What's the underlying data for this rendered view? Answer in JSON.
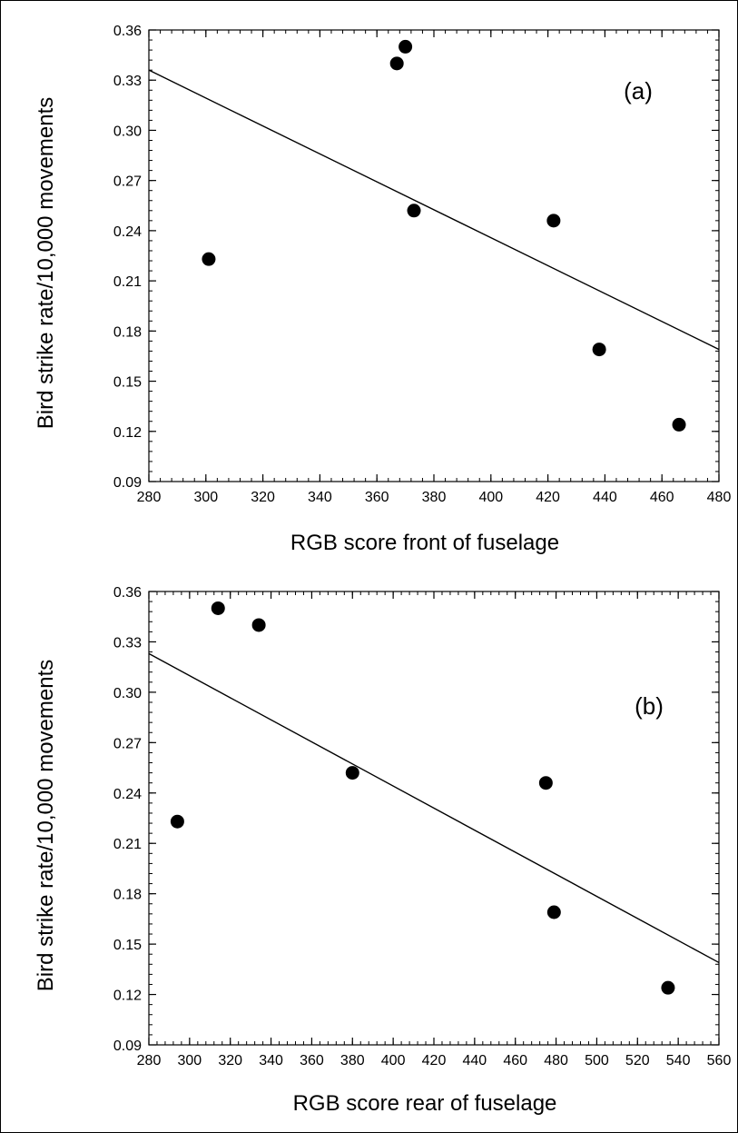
{
  "chart_data": [
    {
      "type": "scatter",
      "panel_label": "(a)",
      "xlabel": "RGB score front of fuselage",
      "ylabel": "Bird strike rate/10,000 movements",
      "xlim": [
        280,
        480
      ],
      "ylim": [
        0.09,
        0.36
      ],
      "x_ticks": [
        280,
        300,
        320,
        340,
        360,
        380,
        400,
        420,
        440,
        460,
        480
      ],
      "y_ticks": [
        0.09,
        0.12,
        0.15,
        0.18,
        0.21,
        0.24,
        0.27,
        0.3,
        0.33,
        0.36
      ],
      "x_tick_labels": [
        "280",
        "300",
        "320",
        "340",
        "360",
        "380",
        "400",
        "420",
        "440",
        "460",
        "480"
      ],
      "y_tick_labels": [
        "0.09",
        "0.12",
        "0.15",
        "0.18",
        "0.21",
        "0.24",
        "0.27",
        "0.30",
        "0.33",
        "0.36"
      ],
      "points": [
        {
          "x": 301,
          "y": 0.223
        },
        {
          "x": 367,
          "y": 0.34
        },
        {
          "x": 370,
          "y": 0.35
        },
        {
          "x": 373,
          "y": 0.252
        },
        {
          "x": 422,
          "y": 0.246
        },
        {
          "x": 438,
          "y": 0.169
        },
        {
          "x": 466,
          "y": 0.124
        }
      ],
      "trend_line": {
        "x": [
          280,
          480
        ],
        "y": [
          0.336,
          0.169
        ]
      },
      "grid": false,
      "marker_color": "#000000",
      "line_color": "#000000"
    },
    {
      "type": "scatter",
      "panel_label": "(b)",
      "xlabel": "RGB score rear of fuselage",
      "ylabel": "Bird strike rate/10,000 movements",
      "xlim": [
        280,
        560
      ],
      "ylim": [
        0.09,
        0.36
      ],
      "x_ticks": [
        280,
        300,
        320,
        340,
        360,
        380,
        400,
        420,
        440,
        460,
        480,
        500,
        520,
        540,
        560
      ],
      "y_ticks": [
        0.09,
        0.12,
        0.15,
        0.18,
        0.21,
        0.24,
        0.27,
        0.3,
        0.33,
        0.36
      ],
      "x_tick_labels": [
        "280",
        "300",
        "320",
        "340",
        "360",
        "380",
        "400",
        "420",
        "440",
        "460",
        "480",
        "500",
        "520",
        "540",
        "560"
      ],
      "y_tick_labels": [
        "0.09",
        "0.12",
        "0.15",
        "0.18",
        "0.21",
        "0.24",
        "0.27",
        "0.30",
        "0.33",
        "0.36"
      ],
      "points": [
        {
          "x": 294,
          "y": 0.223
        },
        {
          "x": 314,
          "y": 0.35
        },
        {
          "x": 334,
          "y": 0.34
        },
        {
          "x": 380,
          "y": 0.252
        },
        {
          "x": 475,
          "y": 0.246
        },
        {
          "x": 479,
          "y": 0.169
        },
        {
          "x": 535,
          "y": 0.124
        }
      ],
      "trend_line": {
        "x": [
          280,
          560
        ],
        "y": [
          0.323,
          0.139
        ]
      },
      "grid": false,
      "marker_color": "#000000",
      "line_color": "#000000"
    }
  ]
}
